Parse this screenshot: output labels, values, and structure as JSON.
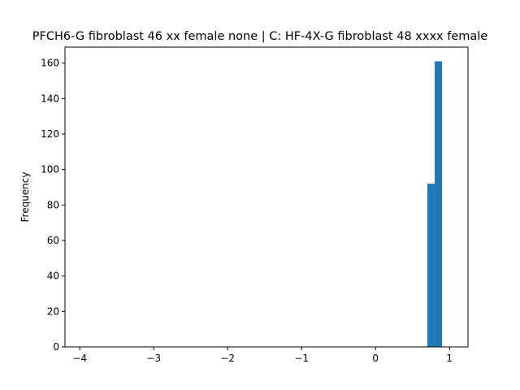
{
  "chart_data": {
    "type": "bar",
    "title": "PFCH6-G fibroblast 46 xx female none | C: HF-4X-G fibroblast 48 xxxx female",
    "xlabel": "",
    "ylabel": "Frequency",
    "xlim": [
      -4.2,
      1.25
    ],
    "ylim": [
      0,
      169
    ],
    "x_ticks": [
      -4,
      -3,
      -2,
      -1,
      0,
      1
    ],
    "x_tick_labels": [
      "−4",
      "−3",
      "−2",
      "−1",
      "0",
      "1"
    ],
    "y_ticks": [
      0,
      20,
      40,
      60,
      80,
      100,
      120,
      140,
      160
    ],
    "y_tick_labels": [
      "0",
      "20",
      "40",
      "60",
      "80",
      "100",
      "120",
      "140",
      "160"
    ],
    "bins": [
      {
        "x0": 0.7,
        "x1": 0.8,
        "value": 92
      },
      {
        "x0": 0.8,
        "x1": 0.9,
        "value": 161
      }
    ],
    "bar_color": "#1f77b4",
    "grid": false
  }
}
